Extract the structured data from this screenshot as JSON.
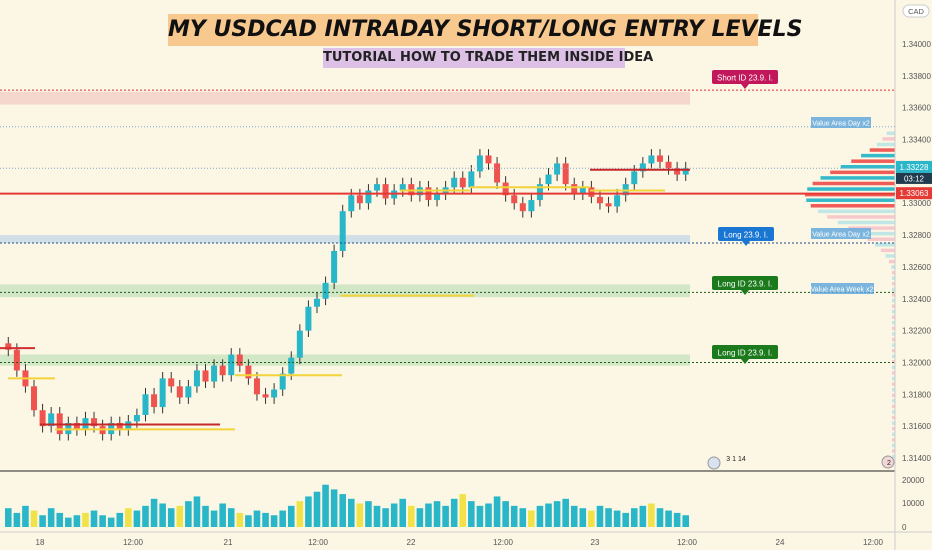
{
  "page": {
    "title": "MY USDCAD INTRADAY SHORT/LONG ENTRY LEVELS",
    "subtitle": "TUTORIAL HOW TO TRADE THEM INSIDE IDEA"
  },
  "colors": {
    "up": "#29b6c8",
    "down": "#ef5350",
    "volume_up": "#29b6c8",
    "volume_special": "#f2e24a",
    "short_label": "#c2185b",
    "long_label": "#1b7a1b",
    "value_area": "#64a9dc",
    "background": "#fbf7e4"
  },
  "chart_data": {
    "type": "candlestick",
    "symbol": "USDCAD",
    "currency_badge": "CAD",
    "yaxis": {
      "ticks": [
        "1.34000",
        "1.33800",
        "1.33600",
        "1.33400",
        "1.33000",
        "1.32800",
        "1.32600",
        "1.32400",
        "1.32200",
        "1.32000",
        "1.31800",
        "1.31600",
        "1.31400"
      ],
      "range": [
        1.313,
        1.342
      ]
    },
    "xaxis": {
      "ticks": [
        "18",
        "12:00",
        "21",
        "12:00",
        "22",
        "12:00",
        "23",
        "12:00",
        "24",
        "12:00"
      ]
    },
    "volume_axis": {
      "ticks": [
        "20000",
        "10000",
        "0"
      ]
    },
    "price_labels": {
      "current_price": "1.33228",
      "countdown": "03:12",
      "red_line_price": "1.33063"
    },
    "level_labels": [
      {
        "name": "short",
        "text": "Short ID   23.9. I.",
        "price": 1.3371
      },
      {
        "name": "long-1",
        "text": "Long   23.9. I.",
        "price": 1.3275
      },
      {
        "name": "long-2",
        "text": "Long ID   23.9. I.",
        "price": 1.3244
      },
      {
        "name": "long-3",
        "text": "Long ID   23.9. I.",
        "price": 1.32
      }
    ],
    "value_area_labels": [
      {
        "text": "Value Area Day x2",
        "price": 1.3348
      },
      {
        "text": "Value Area Day x2",
        "price": 1.3278
      },
      {
        "text": "Value Area Week x2",
        "price": 1.3243
      }
    ],
    "event_badge": "3 1 14",
    "event_badge_2": "2",
    "candles": [
      [
        1.3212,
        1.3208
      ],
      [
        1.3208,
        1.3195
      ],
      [
        1.3195,
        1.3185
      ],
      [
        1.3185,
        1.317
      ],
      [
        1.317,
        1.316
      ],
      [
        1.316,
        1.3168
      ],
      [
        1.3168,
        1.3155
      ],
      [
        1.3155,
        1.3162
      ],
      [
        1.3162,
        1.3158
      ],
      [
        1.3158,
        1.3165
      ],
      [
        1.3165,
        1.316
      ],
      [
        1.316,
        1.3155
      ],
      [
        1.3155,
        1.3162
      ],
      [
        1.3162,
        1.3158
      ],
      [
        1.3158,
        1.3163
      ],
      [
        1.3163,
        1.3167
      ],
      [
        1.3167,
        1.318
      ],
      [
        1.318,
        1.3172
      ],
      [
        1.3172,
        1.319
      ],
      [
        1.319,
        1.3185
      ],
      [
        1.3185,
        1.3178
      ],
      [
        1.3178,
        1.3185
      ],
      [
        1.3185,
        1.3195
      ],
      [
        1.3195,
        1.3188
      ],
      [
        1.3188,
        1.3198
      ],
      [
        1.3198,
        1.3192
      ],
      [
        1.3192,
        1.3205
      ],
      [
        1.3205,
        1.3198
      ],
      [
        1.3198,
        1.319
      ],
      [
        1.319,
        1.318
      ],
      [
        1.318,
        1.3178
      ],
      [
        1.3178,
        1.3183
      ],
      [
        1.3183,
        1.3193
      ],
      [
        1.3193,
        1.3203
      ],
      [
        1.3203,
        1.322
      ],
      [
        1.322,
        1.3235
      ],
      [
        1.3235,
        1.324
      ],
      [
        1.324,
        1.325
      ],
      [
        1.325,
        1.327
      ],
      [
        1.327,
        1.3295
      ],
      [
        1.3295,
        1.3305
      ],
      [
        1.3305,
        1.33
      ],
      [
        1.33,
        1.3308
      ],
      [
        1.3308,
        1.3312
      ],
      [
        1.3312,
        1.3303
      ],
      [
        1.3303,
        1.3308
      ],
      [
        1.3308,
        1.3312
      ],
      [
        1.3312,
        1.3305
      ],
      [
        1.3305,
        1.331
      ],
      [
        1.331,
        1.3302
      ],
      [
        1.3302,
        1.3306
      ],
      [
        1.3306,
        1.331
      ],
      [
        1.331,
        1.3316
      ],
      [
        1.3316,
        1.331
      ],
      [
        1.331,
        1.332
      ],
      [
        1.332,
        1.333
      ],
      [
        1.333,
        1.3325
      ],
      [
        1.3325,
        1.3313
      ],
      [
        1.3313,
        1.3305
      ],
      [
        1.3305,
        1.33
      ],
      [
        1.33,
        1.3295
      ],
      [
        1.3295,
        1.3302
      ],
      [
        1.3302,
        1.3312
      ],
      [
        1.3312,
        1.3318
      ],
      [
        1.3318,
        1.3325
      ],
      [
        1.3325,
        1.3312
      ],
      [
        1.3312,
        1.3306
      ],
      [
        1.3306,
        1.331
      ],
      [
        1.331,
        1.3304
      ],
      [
        1.3304,
        1.33
      ],
      [
        1.33,
        1.3298
      ],
      [
        1.3298,
        1.3305
      ],
      [
        1.3305,
        1.3312
      ],
      [
        1.3312,
        1.332
      ],
      [
        1.332,
        1.3325
      ],
      [
        1.3325,
        1.333
      ],
      [
        1.333,
        1.3326
      ],
      [
        1.3326,
        1.3322
      ],
      [
        1.3322,
        1.3318
      ],
      [
        1.3318,
        1.3322
      ]
    ],
    "volumes": [
      8000,
      6000,
      9000,
      7000,
      5000,
      8000,
      6000,
      4000,
      5000,
      6000,
      7000,
      5000,
      4000,
      6000,
      8000,
      7000,
      9000,
      12000,
      10000,
      8000,
      9000,
      11000,
      13000,
      9000,
      7000,
      10000,
      8000,
      6000,
      5000,
      7000,
      6000,
      5000,
      7000,
      9000,
      11000,
      13000,
      15000,
      18000,
      16000,
      14000,
      12000,
      10000,
      11000,
      9000,
      8000,
      10000,
      12000,
      9000,
      8000,
      10000,
      11000,
      9000,
      12000,
      14000,
      11000,
      9000,
      10000,
      13000,
      11000,
      9000,
      8000,
      7000,
      9000,
      10000,
      11000,
      12000,
      9000,
      8000,
      7000,
      9000,
      8000,
      7000,
      6000,
      8000,
      9000,
      10000,
      8000,
      7000,
      6000,
      5000
    ],
    "volume_special_indices": [
      3,
      9,
      14,
      20,
      27,
      34,
      41,
      47,
      53,
      61,
      68,
      75
    ]
  }
}
